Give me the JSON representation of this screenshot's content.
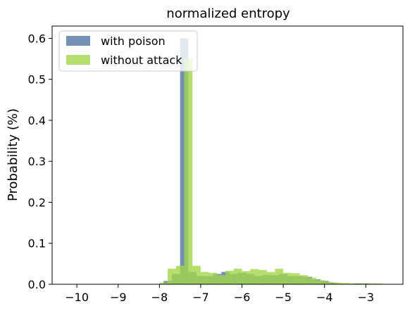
{
  "chart_data": {
    "type": "bar",
    "title": "normalized entropy",
    "xlabel": "",
    "ylabel": "Probability (%)",
    "xlim": [
      -10.6,
      -2.1
    ],
    "ylim": [
      0,
      0.63
    ],
    "xticks": [
      -10,
      -9,
      -8,
      -7,
      -6,
      -5,
      -4,
      -3
    ],
    "xtick_labels": [
      "−10",
      "−9",
      "−8",
      "−7",
      "−6",
      "−5",
      "−4",
      "−3"
    ],
    "yticks": [
      0.0,
      0.1,
      0.2,
      0.3,
      0.4,
      0.5,
      0.6
    ],
    "ytick_labels": [
      "0.0",
      "0.1",
      "0.2",
      "0.3",
      "0.4",
      "0.5",
      "0.6"
    ],
    "legend_position": "top-left",
    "grid": false,
    "series": [
      {
        "name": "with poison",
        "color": "#4c72a0",
        "opacity": 0.78,
        "bin_width": 0.2,
        "bins": [
          {
            "x": -7.8,
            "y": 0.008
          },
          {
            "x": -7.6,
            "y": 0.025
          },
          {
            "x": -7.4,
            "y": 0.6
          },
          {
            "x": -7.2,
            "y": 0.03
          },
          {
            "x": -7.0,
            "y": 0.02
          },
          {
            "x": -6.8,
            "y": 0.02
          },
          {
            "x": -6.6,
            "y": 0.025
          },
          {
            "x": -6.4,
            "y": 0.03
          },
          {
            "x": -6.2,
            "y": 0.025
          },
          {
            "x": -6.0,
            "y": 0.028
          },
          {
            "x": -5.8,
            "y": 0.025
          },
          {
            "x": -5.6,
            "y": 0.02
          },
          {
            "x": -5.4,
            "y": 0.023
          },
          {
            "x": -5.2,
            "y": 0.022
          },
          {
            "x": -5.0,
            "y": 0.025
          },
          {
            "x": -4.8,
            "y": 0.02
          },
          {
            "x": -4.6,
            "y": 0.02
          },
          {
            "x": -4.4,
            "y": 0.018
          },
          {
            "x": -4.2,
            "y": 0.012
          },
          {
            "x": -4.0,
            "y": 0.008
          },
          {
            "x": -3.8,
            "y": 0.004
          },
          {
            "x": -3.2,
            "y": 0.002
          },
          {
            "x": -3.0,
            "y": 0.002
          }
        ]
      },
      {
        "name": "without attack",
        "color": "#a2d64a",
        "opacity": 0.8,
        "bin_width": 0.2,
        "bins": [
          {
            "x": -7.9,
            "y": 0.004
          },
          {
            "x": -7.7,
            "y": 0.038
          },
          {
            "x": -7.5,
            "y": 0.045
          },
          {
            "x": -7.3,
            "y": 0.55
          },
          {
            "x": -7.1,
            "y": 0.045
          },
          {
            "x": -6.9,
            "y": 0.03
          },
          {
            "x": -6.7,
            "y": 0.028
          },
          {
            "x": -6.5,
            "y": 0.022
          },
          {
            "x": -6.3,
            "y": 0.033
          },
          {
            "x": -6.1,
            "y": 0.038
          },
          {
            "x": -5.9,
            "y": 0.032
          },
          {
            "x": -5.7,
            "y": 0.037
          },
          {
            "x": -5.5,
            "y": 0.035
          },
          {
            "x": -5.3,
            "y": 0.03
          },
          {
            "x": -5.1,
            "y": 0.038
          },
          {
            "x": -4.9,
            "y": 0.028
          },
          {
            "x": -4.7,
            "y": 0.027
          },
          {
            "x": -4.5,
            "y": 0.022
          },
          {
            "x": -4.3,
            "y": 0.016
          },
          {
            "x": -4.1,
            "y": 0.01
          },
          {
            "x": -3.9,
            "y": 0.006
          },
          {
            "x": -3.7,
            "y": 0.004
          },
          {
            "x": -3.5,
            "y": 0.003
          },
          {
            "x": -3.3,
            "y": 0.002
          },
          {
            "x": -3.1,
            "y": 0.002
          },
          {
            "x": -2.9,
            "y": 0.002
          },
          {
            "x": -2.7,
            "y": 0.002
          }
        ]
      }
    ]
  }
}
